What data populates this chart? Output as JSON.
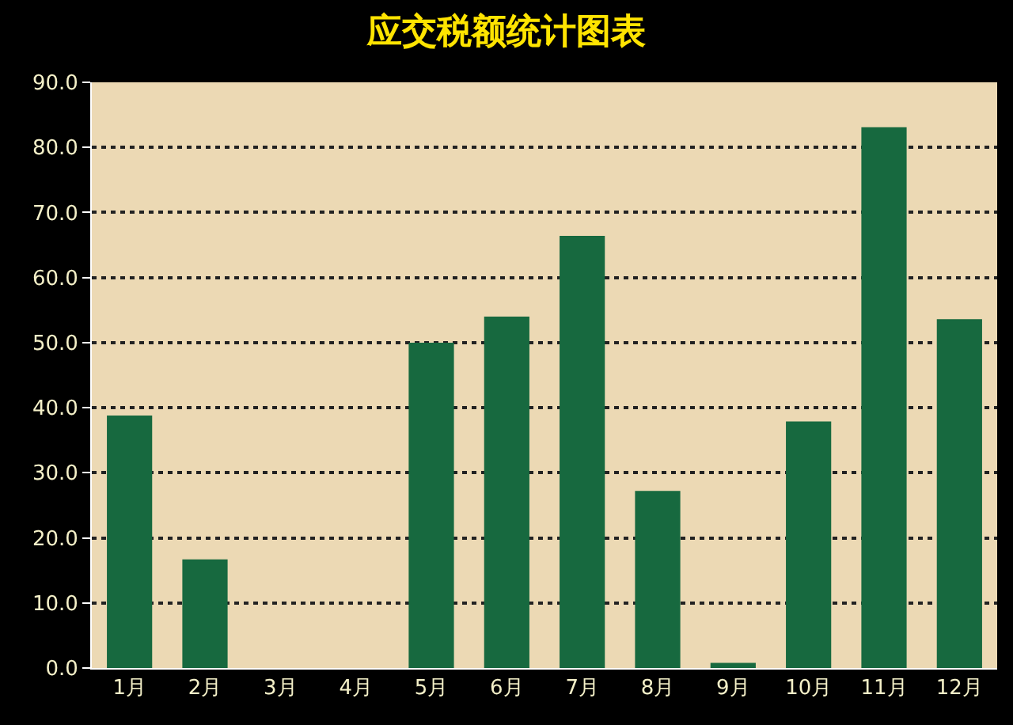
{
  "chart_data": {
    "type": "bar",
    "title": "应交税额统计图表",
    "categories": [
      "1月",
      "2月",
      "3月",
      "4月",
      "5月",
      "6月",
      "7月",
      "8月",
      "9月",
      "10月",
      "11月",
      "12月"
    ],
    "values": [
      38.8,
      16.7,
      0,
      0,
      50.0,
      54.0,
      66.4,
      27.2,
      0.8,
      37.9,
      83.1,
      53.6
    ],
    "color": "#17693f",
    "ylim": [
      0,
      90
    ],
    "yticks": [
      {
        "value": 0,
        "label": "0.0"
      },
      {
        "value": 10,
        "label": "10.0"
      },
      {
        "value": 20,
        "label": "20.0"
      },
      {
        "value": 30,
        "label": "30.0"
      },
      {
        "value": 40,
        "label": "40.0"
      },
      {
        "value": 50,
        "label": "50.0"
      },
      {
        "value": 60,
        "label": "60.0"
      },
      {
        "value": 70,
        "label": "70.0"
      },
      {
        "value": 80,
        "label": "80.0"
      },
      {
        "value": 90,
        "label": "90.0"
      }
    ],
    "grid": "y"
  }
}
